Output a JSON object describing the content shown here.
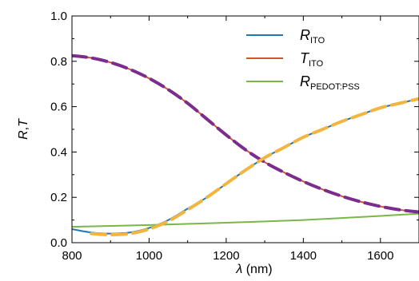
{
  "chart_data": {
    "type": "line",
    "title": "",
    "xlabel": {
      "symbol": "λ",
      "unit": " (nm)"
    },
    "ylabel": {
      "part1": "R",
      "sep": ",",
      "part2": "T"
    },
    "xlim": [
      800,
      1700
    ],
    "ylim": [
      0,
      1.0
    ],
    "x_ticks": [
      800,
      1000,
      1200,
      1400,
      1600
    ],
    "x_tick_labels": [
      "800",
      "1000",
      "1200",
      "1400",
      "1600"
    ],
    "y_ticks": [
      0,
      0.2,
      0.4,
      0.6,
      0.8,
      1.0
    ],
    "y_tick_labels": [
      "0.0",
      "0.2",
      "0.4",
      "0.6",
      "0.8",
      "1.0"
    ],
    "grid": false,
    "legend_position": "top-right",
    "series": [
      {
        "name": {
          "main": "R",
          "sub": "ITO"
        },
        "color": "#1f77b4",
        "style": "solid",
        "x": [
          800,
          850,
          900,
          950,
          1000,
          1050,
          1100,
          1150,
          1200,
          1250,
          1300,
          1350,
          1400,
          1450,
          1500,
          1550,
          1600,
          1650,
          1700
        ],
        "y": [
          0.06,
          0.045,
          0.04,
          0.045,
          0.065,
          0.1,
          0.15,
          0.2,
          0.26,
          0.32,
          0.375,
          0.42,
          0.465,
          0.5,
          0.535,
          0.565,
          0.595,
          0.615,
          0.635
        ]
      },
      {
        "name": {
          "main": "T",
          "sub": "ITO"
        },
        "color": "#d6542d",
        "style": "solid",
        "x": [
          800,
          850,
          900,
          950,
          1000,
          1050,
          1100,
          1150,
          1200,
          1250,
          1300,
          1350,
          1400,
          1450,
          1500,
          1550,
          1600,
          1650,
          1700
        ],
        "y": [
          0.825,
          0.815,
          0.795,
          0.765,
          0.725,
          0.675,
          0.615,
          0.545,
          0.475,
          0.41,
          0.355,
          0.31,
          0.27,
          0.235,
          0.205,
          0.18,
          0.16,
          0.145,
          0.135
        ]
      },
      {
        "name": {
          "main": "R",
          "sub": "PEDOT:PSS"
        },
        "color": "#7ab648",
        "style": "solid",
        "x": [
          800,
          1000,
          1200,
          1400,
          1600,
          1700
        ],
        "y": [
          0.07,
          0.078,
          0.088,
          0.1,
          0.118,
          0.128
        ]
      },
      {
        "name": "",
        "color": "#7b2d8e",
        "style": "dashed",
        "legend": false,
        "x": [
          800,
          850,
          900,
          950,
          1000,
          1050,
          1100,
          1150,
          1200,
          1250,
          1300,
          1350,
          1400,
          1450,
          1500,
          1550,
          1600,
          1650,
          1700
        ],
        "y": [
          0.825,
          0.815,
          0.795,
          0.765,
          0.725,
          0.675,
          0.615,
          0.545,
          0.475,
          0.41,
          0.355,
          0.31,
          0.27,
          0.235,
          0.205,
          0.18,
          0.16,
          0.145,
          0.135
        ]
      },
      {
        "name": "",
        "color": "#f2b640",
        "style": "dashed",
        "legend": false,
        "x": [
          850,
          900,
          950,
          1000,
          1050,
          1100,
          1150,
          1200,
          1250,
          1300,
          1350,
          1400,
          1450,
          1500,
          1550,
          1600,
          1650,
          1700
        ],
        "y": [
          0.04,
          0.035,
          0.04,
          0.06,
          0.095,
          0.145,
          0.2,
          0.26,
          0.32,
          0.375,
          0.42,
          0.465,
          0.5,
          0.535,
          0.565,
          0.595,
          0.615,
          0.635
        ]
      }
    ]
  }
}
